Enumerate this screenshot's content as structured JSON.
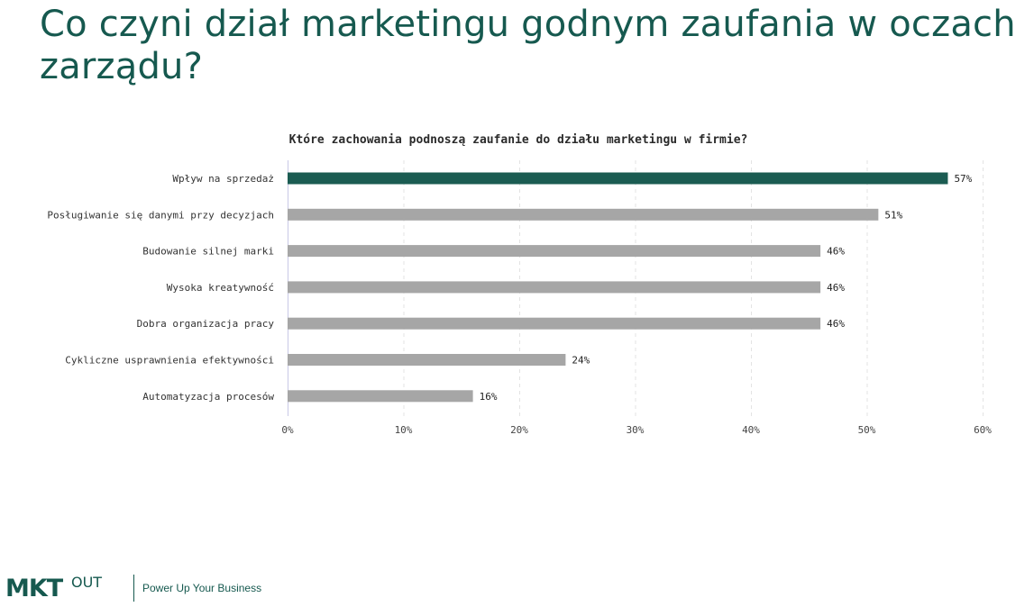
{
  "slide": {
    "title": "Co czyni dział marketingu godnym zaufania w oczach zarządu?"
  },
  "chart_data": {
    "type": "bar",
    "orientation": "horizontal",
    "title": "Które zachowania podnoszą zaufanie do działu marketingu w firmie?",
    "xlabel": "",
    "ylabel": "",
    "categories": [
      "Wpływ na sprzedaż",
      "Posługiwanie się danymi przy decyzjach",
      "Budowanie silnej marki",
      "Wysoka kreatywność",
      "Dobra organizacja pracy",
      "Cykliczne usprawnienia efektywności",
      "Automatyzacja procesów"
    ],
    "values": [
      57,
      51,
      46,
      46,
      46,
      24,
      16
    ],
    "value_labels": [
      "57%",
      "51%",
      "46%",
      "46%",
      "46%",
      "24%",
      "16%"
    ],
    "xlim": [
      0,
      60
    ],
    "x_ticks": [
      0,
      10,
      20,
      30,
      40,
      50,
      60
    ],
    "x_tick_labels": [
      "0%",
      "10%",
      "20%",
      "30%",
      "40%",
      "50%",
      "60%"
    ],
    "grid": "vertical dashed",
    "colors": {
      "highlight": "#1b5c52",
      "default": "#a6a6a6",
      "grid": "#e3e3e3",
      "axis": "#c9c9e6"
    }
  },
  "footer": {
    "logo_text": "MKT",
    "logo_sup": "OUT",
    "tagline": "Power Up Your Business"
  }
}
